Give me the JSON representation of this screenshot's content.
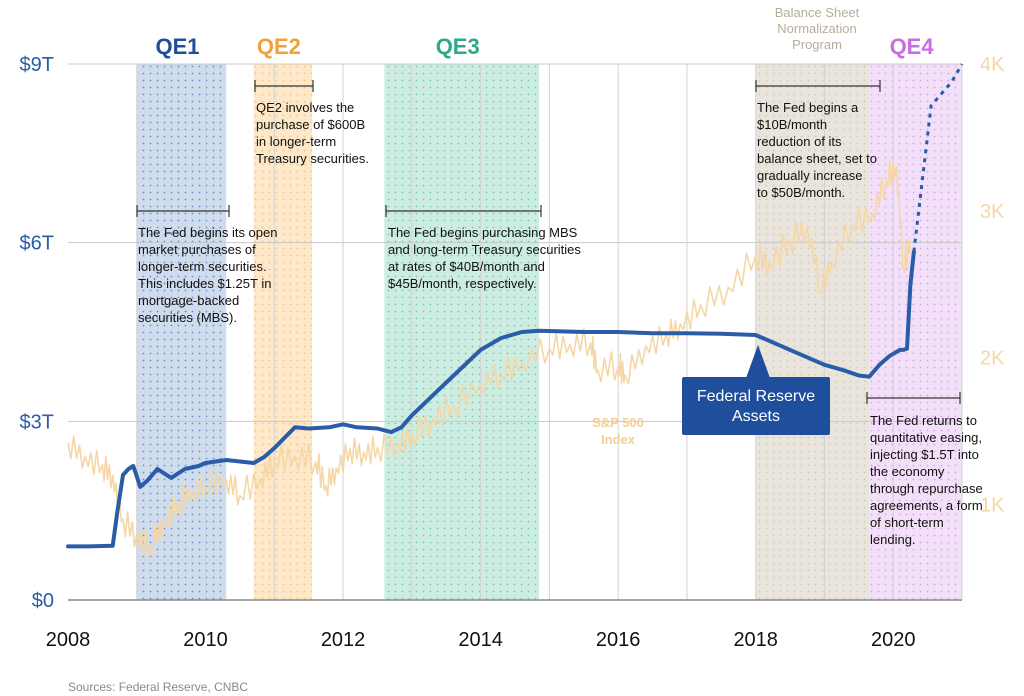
{
  "chart_data": {
    "type": "line",
    "x_axis": {
      "ticks": [
        "2008",
        "2010",
        "2012",
        "2014",
        "2016",
        "2018",
        "2020"
      ],
      "range": [
        2008,
        2021
      ]
    },
    "left_axis": {
      "ticks": [
        "$0",
        "$3T",
        "$6T",
        "$9T"
      ],
      "unit": "trillions USD",
      "range": [
        0,
        9
      ]
    },
    "right_axis": {
      "ticks": [
        "1K",
        "2K",
        "3K",
        "4K"
      ],
      "range": [
        350,
        4000
      ]
    },
    "programs": [
      {
        "label": "QE1",
        "start": 2009.0,
        "end": 2010.3,
        "color": "#1f4f9c",
        "fill": "#c7d6ea"
      },
      {
        "label": "QE2",
        "start": 2010.7,
        "end": 2011.55,
        "color": "#f0a13b",
        "fill": "#fde4bf"
      },
      {
        "label": "QE3",
        "start": 2012.6,
        "end": 2014.85,
        "color": "#2fa889",
        "fill": "#c6eadd"
      },
      {
        "label": "",
        "start": 2018.0,
        "end": 2019.65,
        "color": "#b7ad9a",
        "fill": "#e6e0d6"
      },
      {
        "label": "QE4",
        "start": 2019.65,
        "end": 2021.0,
        "color": "#c96de0",
        "fill": "#f0dbf7"
      }
    ],
    "bsn_label": [
      "Balance Sheet",
      "Normalization",
      "Program"
    ],
    "annotations": [
      {
        "lines": [
          "The Fed begins its open",
          "market purchases of",
          "longer-term securities.",
          "This includes $1.25T in",
          "mortgage-backed",
          "securities (MBS)."
        ]
      },
      {
        "lines": [
          "QE2 involves the",
          "purchase of $600B",
          "in longer-term",
          "Treasury securities."
        ]
      },
      {
        "lines": [
          "The Fed begins purchasing MBS",
          "and long-term Treasury securities",
          "at rates of $40B/month and",
          "$45B/month, respectively."
        ]
      },
      {
        "lines": [
          "The Fed begins a",
          "$10B/month",
          "reduction of its",
          "balance sheet, set to",
          "gradually increase",
          "to $50B/month."
        ]
      },
      {
        "lines": [
          "The Fed returns to",
          "quantitative easing,",
          "injecting $1.5T into",
          "the economy",
          "through repurchase",
          "agreements, a form",
          "of short-term",
          "lending."
        ]
      }
    ],
    "series": [
      {
        "name": "Federal Reserve Assets",
        "axis": "left",
        "color": "#2a5ca8",
        "x": [
          2008.0,
          2008.3,
          2008.65,
          2008.72,
          2008.8,
          2008.88,
          2008.95,
          2009.05,
          2009.15,
          2009.3,
          2009.5,
          2009.7,
          2009.9,
          2010.0,
          2010.3,
          2010.7,
          2010.85,
          2011.0,
          2011.3,
          2011.5,
          2011.8,
          2012.0,
          2012.2,
          2012.5,
          2012.7,
          2012.85,
          2013.0,
          2013.5,
          2014.0,
          2014.3,
          2014.6,
          2014.85,
          2015.5,
          2016.0,
          2016.5,
          2017.0,
          2017.5,
          2018.0,
          2018.5,
          2019.0,
          2019.3,
          2019.5,
          2019.65,
          2019.8,
          2019.95,
          2020.1,
          2020.15,
          2020.2,
          2020.25,
          2020.3
        ],
        "y": [
          0.9,
          0.9,
          0.91,
          1.5,
          2.1,
          2.2,
          2.25,
          1.9,
          2.0,
          2.2,
          2.05,
          2.2,
          2.25,
          2.3,
          2.35,
          2.3,
          2.4,
          2.55,
          2.9,
          2.88,
          2.9,
          2.95,
          2.9,
          2.88,
          2.82,
          2.9,
          3.1,
          3.65,
          4.2,
          4.4,
          4.5,
          4.52,
          4.5,
          4.5,
          4.48,
          4.48,
          4.47,
          4.45,
          4.2,
          3.95,
          3.85,
          3.77,
          3.75,
          3.95,
          4.1,
          4.2,
          4.2,
          4.22,
          5.3,
          5.85
        ],
        "projection": {
          "x": [
            2020.3,
            2020.55,
            2020.85,
            2021.0
          ],
          "y": [
            5.85,
            8.3,
            8.7,
            9.0
          ]
        }
      },
      {
        "name": "S&P 500 Index",
        "axis": "right",
        "color": "#f5d7a6",
        "x": [
          2008.0,
          2008.25,
          2008.5,
          2008.65,
          2008.8,
          2009.0,
          2009.2,
          2009.4,
          2009.6,
          2009.8,
          2010.0,
          2010.3,
          2010.5,
          2010.8,
          2011.0,
          2011.3,
          2011.6,
          2011.75,
          2011.9,
          2012.1,
          2012.3,
          2012.5,
          2012.8,
          2013.0,
          2013.3,
          2013.6,
          2014.0,
          2014.3,
          2014.6,
          2015.0,
          2015.3,
          2015.6,
          2015.7,
          2016.0,
          2016.1,
          2016.4,
          2016.7,
          2016.9,
          2017.2,
          2017.6,
          2018.0,
          2018.2,
          2018.5,
          2018.75,
          2018.95,
          2019.1,
          2019.4,
          2019.7,
          2019.9,
          2020.05,
          2020.15,
          2020.25
        ],
        "y": [
          1420,
          1330,
          1270,
          1200,
          900,
          800,
          720,
          900,
          1020,
          1090,
          1120,
          1170,
          1060,
          1180,
          1290,
          1330,
          1290,
          1130,
          1250,
          1380,
          1360,
          1390,
          1420,
          1480,
          1590,
          1680,
          1820,
          1880,
          1970,
          2060,
          2090,
          2100,
          1920,
          1940,
          1880,
          2080,
          2160,
          2230,
          2360,
          2480,
          2700,
          2650,
          2800,
          2900,
          2450,
          2650,
          2900,
          2980,
          3200,
          3300,
          2600,
          2800
        ]
      }
    ]
  },
  "labels": {
    "sp500": [
      "S&P 500",
      "Index"
    ],
    "fed_assets": [
      "Federal Reserve",
      "Assets"
    ],
    "source": "Sources: Federal Reserve, CNBC"
  }
}
